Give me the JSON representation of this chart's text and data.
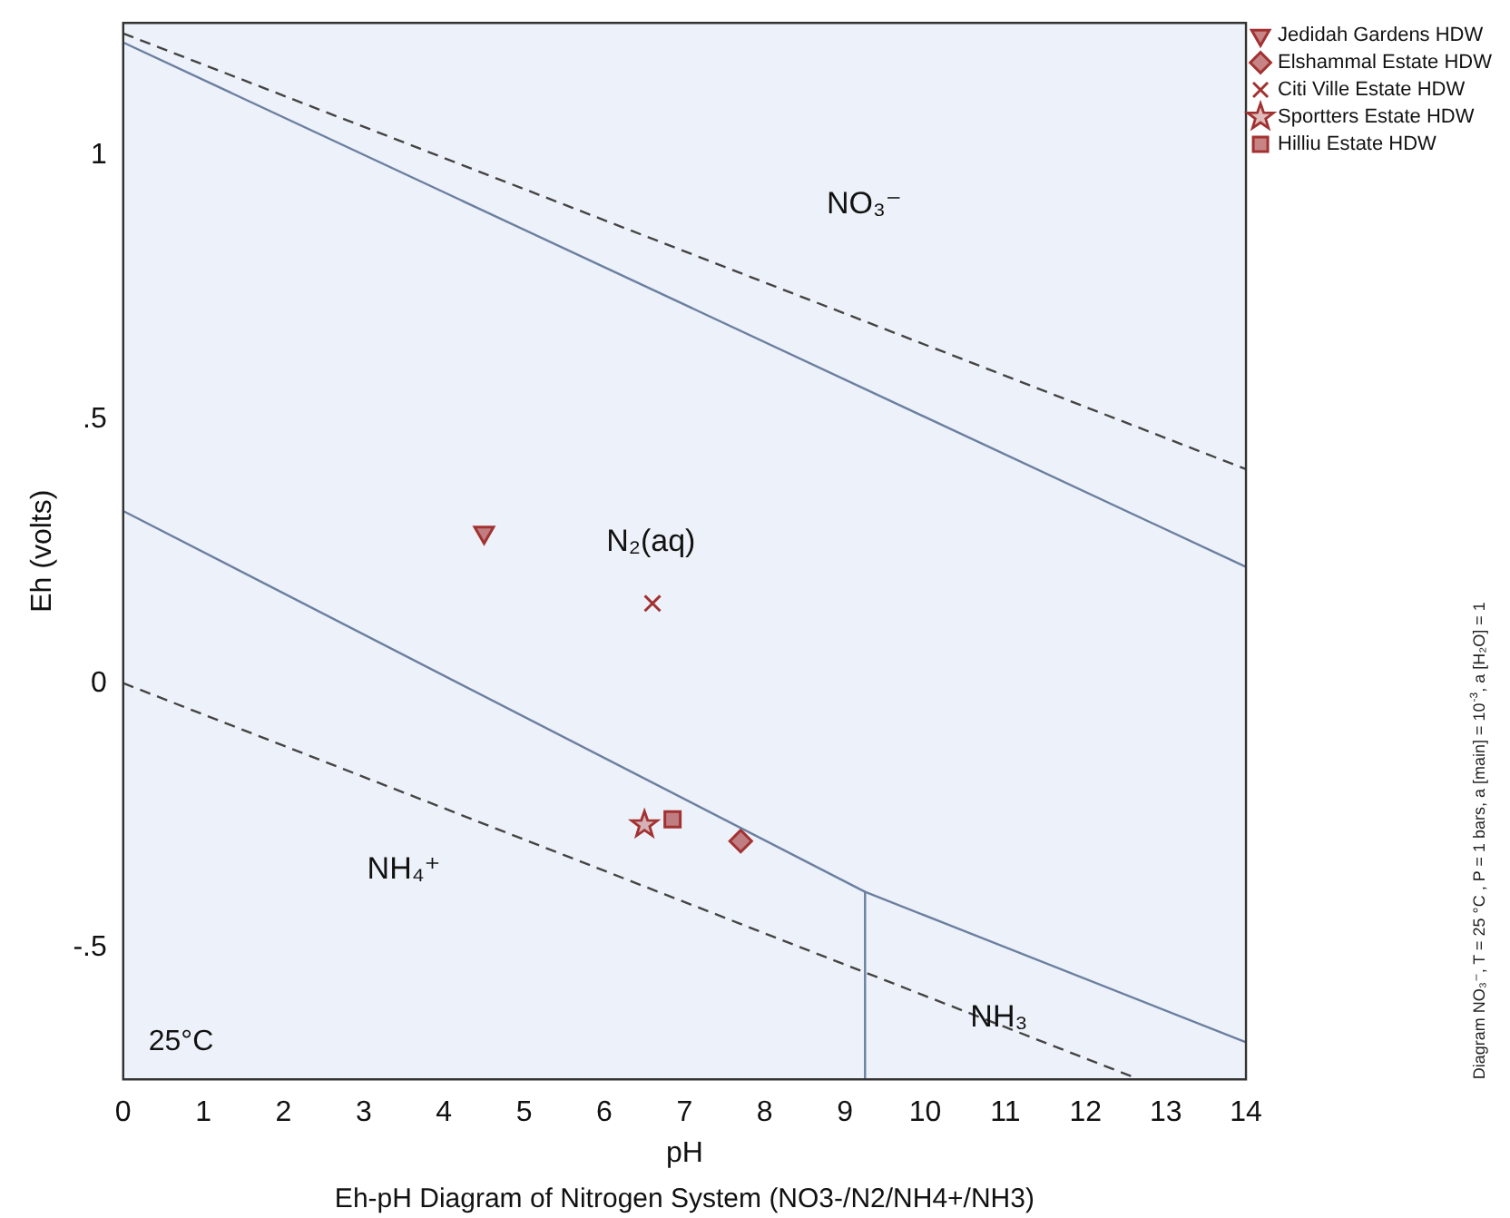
{
  "chart_data": {
    "type": "scatter",
    "title": "Eh-pH Diagram of Nitrogen System (NO3-/N2/NH4+/NH3)",
    "xlabel": "pH",
    "ylabel": "Eh (volts)",
    "xlim": [
      0,
      14
    ],
    "xticks": [
      0,
      1,
      2,
      3,
      4,
      5,
      6,
      7,
      8,
      9,
      10,
      11,
      12,
      13,
      14
    ],
    "ylim": [
      -0.75,
      1.25
    ],
    "yticks": [
      {
        "value": -0.5,
        "label": "-.5"
      },
      {
        "value": 0,
        "label": "0"
      },
      {
        "value": 0.5,
        "label": ".5"
      },
      {
        "value": 1,
        "label": "1"
      }
    ],
    "grid": false,
    "legend": "top right",
    "series": [
      {
        "type": "line",
        "color": "#444444",
        "line_style": "dashed",
        "marker": "none",
        "x": [
          0,
          14
        ],
        "values": [
          1.23,
          0.405
        ]
      },
      {
        "type": "line",
        "color": "#6b7fa0",
        "line_style": "solid",
        "marker": "none",
        "x": [
          0,
          14
        ],
        "values": [
          1.213,
          0.22
        ]
      },
      {
        "type": "line",
        "color": "#6b7fa0",
        "line_style": "solid",
        "marker": "none",
        "x": [
          0,
          9.25,
          14
        ],
        "values": [
          0.326,
          -0.395,
          -0.68
        ]
      },
      {
        "type": "line",
        "color": "#6b7fa0",
        "line_style": "solid",
        "marker": "none",
        "x": [
          9.25,
          9.25
        ],
        "values": [
          -0.395,
          -0.75
        ]
      },
      {
        "type": "line",
        "color": "#444444",
        "line_style": "dashed",
        "marker": "none",
        "x": [
          0,
          12.6
        ],
        "values": [
          0,
          -0.746
        ]
      },
      {
        "name": "Jedidah Gardens HDW",
        "color": "#a23232",
        "marker": "triangle",
        "x": [
          4.5
        ],
        "values": [
          0.285
        ]
      },
      {
        "name": "Elshammal Estate HDW",
        "color": "#a23232",
        "marker": "diamond",
        "x": [
          7.7
        ],
        "values": [
          -0.299
        ]
      },
      {
        "name": "Citi Ville Estate HDW",
        "color": "#a23232",
        "marker": "cross",
        "x": [
          6.6
        ],
        "values": [
          0.151
        ]
      },
      {
        "name": "Sportters Estate HDW",
        "color": "#a23232",
        "marker": "star",
        "x": [
          6.5
        ],
        "values": [
          -0.268
        ]
      },
      {
        "name": "Hilliu Estate HDW",
        "color": "#a23232",
        "marker": "square",
        "x": [
          6.85
        ],
        "values": [
          -0.258
        ]
      }
    ],
    "annotations": [
      "NO₃⁻",
      "N₂(aq)",
      "NH₄⁺",
      "NH₃",
      "25°C",
      "Diagram NO₃⁻, T = 25 °C , P = 1 bars, a [main] = 10$^{-3}$, a [H₂O] = 1"
    ]
  }
}
